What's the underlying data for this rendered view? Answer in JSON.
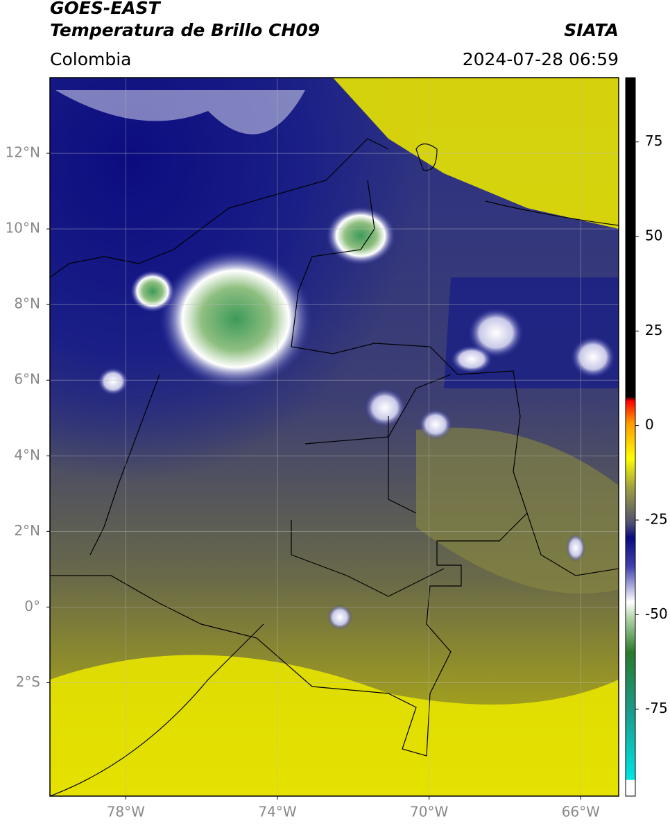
{
  "header": {
    "title": "GOES-EAST",
    "subtitle": "Temperatura de Brillo CH09",
    "source": "SIATA",
    "region": "Colombia",
    "datetime": "2024-07-28 06:59"
  },
  "map": {
    "xlim": [
      -80,
      -65
    ],
    "ylim": [
      -5,
      14
    ],
    "xticks": [
      {
        "value": -78,
        "label": "78°W"
      },
      {
        "value": -74,
        "label": "74°W"
      },
      {
        "value": -70,
        "label": "70°W"
      },
      {
        "value": -66,
        "label": "66°W"
      }
    ],
    "yticks": [
      {
        "value": 12,
        "label": "12°N"
      },
      {
        "value": 10,
        "label": "10°N"
      },
      {
        "value": 8,
        "label": "8°N"
      },
      {
        "value": 6,
        "label": "6°N"
      },
      {
        "value": 4,
        "label": "4°N"
      },
      {
        "value": 2,
        "label": "2°N"
      },
      {
        "value": 0,
        "label": "0°"
      },
      {
        "value": -2,
        "label": "2°S"
      }
    ],
    "grid": true
  },
  "colorbar": {
    "lim": [
      -98,
      92
    ],
    "ticks": [
      75,
      50,
      25,
      0,
      -25,
      -50,
      -75
    ]
  }
}
